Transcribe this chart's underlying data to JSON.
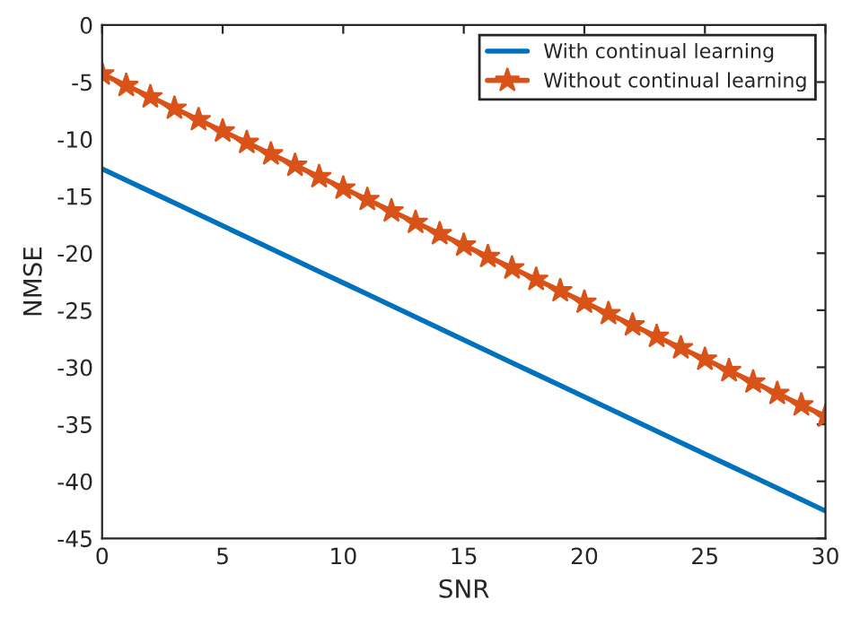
{
  "chart_data": {
    "type": "line",
    "xlabel": "SNR",
    "ylabel": "NMSE",
    "x": [
      0,
      1,
      2,
      3,
      4,
      5,
      6,
      7,
      8,
      9,
      10,
      11,
      12,
      13,
      14,
      15,
      16,
      17,
      18,
      19,
      20,
      21,
      22,
      23,
      24,
      25,
      26,
      27,
      28,
      29,
      30
    ],
    "series": [
      {
        "name": "With continual learning",
        "color": "#0072bd",
        "marker": "none",
        "values": [
          -12.6,
          -13.6,
          -14.6,
          -15.6,
          -16.6,
          -17.6,
          -18.6,
          -19.6,
          -20.6,
          -21.6,
          -22.6,
          -23.6,
          -24.6,
          -25.6,
          -26.6,
          -27.6,
          -28.6,
          -29.6,
          -30.6,
          -31.6,
          -32.6,
          -33.6,
          -34.6,
          -35.6,
          -36.6,
          -37.6,
          -38.6,
          -39.6,
          -40.6,
          -41.6,
          -42.6
        ]
      },
      {
        "name": "Without continual learning",
        "color": "#d95319",
        "marker": "star",
        "values": [
          -4.3,
          -5.3,
          -6.3,
          -7.3,
          -8.3,
          -9.3,
          -10.3,
          -11.3,
          -12.3,
          -13.3,
          -14.3,
          -15.3,
          -16.3,
          -17.3,
          -18.3,
          -19.3,
          -20.3,
          -21.3,
          -22.3,
          -23.3,
          -24.3,
          -25.3,
          -26.3,
          -27.3,
          -28.3,
          -29.3,
          -30.3,
          -31.3,
          -32.3,
          -33.3,
          -34.3
        ]
      }
    ],
    "xlim": [
      0,
      30
    ],
    "xticks": [
      0,
      5,
      10,
      15,
      20,
      25,
      30
    ],
    "ylim": [
      -45,
      0
    ],
    "yticks": [
      -45,
      -40,
      -35,
      -30,
      -25,
      -20,
      -15,
      -10,
      -5,
      0
    ],
    "grid": false,
    "legend": "top right",
    "line_style": "solid"
  }
}
